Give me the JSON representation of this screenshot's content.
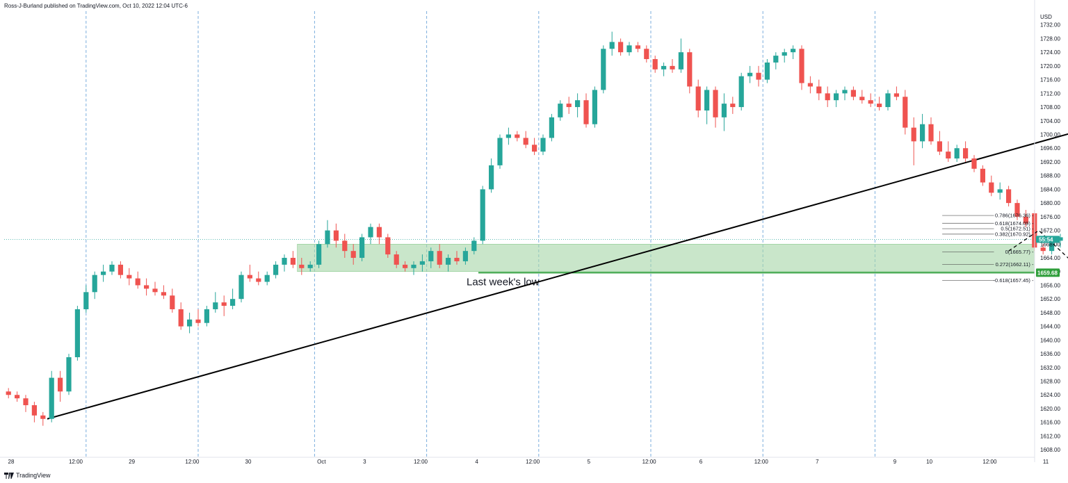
{
  "header": {
    "publisher": "Ross-J-Burland published on TradingView.com, Oct 10, 2022 12:04 UTC-6"
  },
  "brand": {
    "label": "TradingView"
  },
  "chart_data": {
    "type": "candlestick",
    "currency": "USD",
    "ylim": [
      1606,
      1736
    ],
    "xlim": [
      0,
      124
    ],
    "y_ticks": [
      1608,
      1612,
      1616,
      1620,
      1624,
      1628,
      1632,
      1636,
      1640,
      1644,
      1648,
      1652,
      1656,
      1660,
      1664,
      1668,
      1672,
      1676,
      1680,
      1684,
      1688,
      1692,
      1696,
      1700,
      1704,
      1708,
      1712,
      1716,
      1720,
      1724,
      1728,
      1732
    ],
    "x_labels": [
      {
        "label": "28",
        "x": 0
      },
      {
        "label": "12:00",
        "x": 7.5
      },
      {
        "label": "29",
        "x": 14
      },
      {
        "label": "12:00",
        "x": 21
      },
      {
        "label": "30",
        "x": 27.5
      },
      {
        "label": "Oct",
        "x": 36
      },
      {
        "label": "3",
        "x": 41
      },
      {
        "label": "12:00",
        "x": 47.5
      },
      {
        "label": "4",
        "x": 54
      },
      {
        "label": "12:00",
        "x": 60.5
      },
      {
        "label": "5",
        "x": 67
      },
      {
        "label": "12:00",
        "x": 74
      },
      {
        "label": "6",
        "x": 80
      },
      {
        "label": "12:00",
        "x": 87
      },
      {
        "label": "7",
        "x": 93.5
      },
      {
        "label": "9",
        "x": 102.5
      },
      {
        "label": "10",
        "x": 106.5
      },
      {
        "label": "12:00",
        "x": 113.5
      },
      {
        "label": "11",
        "x": 120
      }
    ],
    "session_lines": [
      9.5,
      22.5,
      36,
      49,
      62,
      75,
      88,
      101
    ],
    "candles": [
      [
        1625,
        1626,
        1623,
        1624
      ],
      [
        1624,
        1625,
        1622,
        1623
      ],
      [
        1623,
        1624,
        1619,
        1621
      ],
      [
        1621,
        1622,
        1616,
        1618
      ],
      [
        1618,
        1619,
        1615,
        1617
      ],
      [
        1617,
        1631,
        1616,
        1629
      ],
      [
        1629,
        1631,
        1622,
        1625
      ],
      [
        1625,
        1636,
        1624,
        1635
      ],
      [
        1635,
        1650,
        1634,
        1649
      ],
      [
        1649,
        1656,
        1648,
        1654
      ],
      [
        1654,
        1660,
        1652,
        1659
      ],
      [
        1659,
        1662,
        1657,
        1660
      ],
      [
        1660,
        1663,
        1659,
        1662
      ],
      [
        1662,
        1663,
        1658,
        1659
      ],
      [
        1659,
        1661,
        1656,
        1658
      ],
      [
        1658,
        1660,
        1655,
        1656
      ],
      [
        1656,
        1658,
        1653,
        1655
      ],
      [
        1655,
        1657,
        1653,
        1654
      ],
      [
        1654,
        1656,
        1652,
        1653
      ],
      [
        1653,
        1655,
        1648,
        1649
      ],
      [
        1649,
        1651,
        1643,
        1644
      ],
      [
        1644,
        1648,
        1642,
        1646
      ],
      [
        1646,
        1649,
        1644,
        1645
      ],
      [
        1645,
        1650,
        1644,
        1649
      ],
      [
        1649,
        1654,
        1648,
        1651
      ],
      [
        1651,
        1653,
        1647,
        1650
      ],
      [
        1650,
        1655,
        1649,
        1652
      ],
      [
        1652,
        1660,
        1651,
        1659
      ],
      [
        1659,
        1662,
        1657,
        1658
      ],
      [
        1658,
        1660,
        1656,
        1657
      ],
      [
        1657,
        1660,
        1656,
        1659
      ],
      [
        1659,
        1663,
        1658,
        1662
      ],
      [
        1662,
        1665,
        1660,
        1664
      ],
      [
        1664,
        1666,
        1661,
        1662
      ],
      [
        1662,
        1664,
        1659,
        1661
      ],
      [
        1661,
        1663,
        1660,
        1662
      ],
      [
        1662,
        1669,
        1661,
        1668
      ],
      [
        1668,
        1675,
        1667,
        1672
      ],
      [
        1672,
        1674,
        1667,
        1669
      ],
      [
        1669,
        1671,
        1664,
        1666
      ],
      [
        1666,
        1668,
        1662,
        1664
      ],
      [
        1664,
        1671,
        1663,
        1670
      ],
      [
        1670,
        1674,
        1668,
        1673
      ],
      [
        1673,
        1674,
        1668,
        1670
      ],
      [
        1670,
        1671,
        1664,
        1665
      ],
      [
        1665,
        1666,
        1661,
        1662
      ],
      [
        1662,
        1663,
        1660,
        1661
      ],
      [
        1661,
        1663,
        1659,
        1662
      ],
      [
        1662,
        1665,
        1660,
        1663
      ],
      [
        1663,
        1667,
        1661,
        1666
      ],
      [
        1666,
        1668,
        1661,
        1662
      ],
      [
        1662,
        1665,
        1660,
        1664
      ],
      [
        1664,
        1666,
        1662,
        1663
      ],
      [
        1663,
        1667,
        1662,
        1666
      ],
      [
        1666,
        1670,
        1665,
        1669
      ],
      [
        1669,
        1685,
        1668,
        1684
      ],
      [
        1684,
        1693,
        1683,
        1691
      ],
      [
        1691,
        1700,
        1690,
        1699
      ],
      [
        1699,
        1702,
        1697,
        1700
      ],
      [
        1700,
        1701,
        1698,
        1699
      ],
      [
        1699,
        1701,
        1696,
        1697
      ],
      [
        1697,
        1699,
        1694,
        1695
      ],
      [
        1695,
        1700,
        1694,
        1699
      ],
      [
        1699,
        1706,
        1698,
        1705
      ],
      [
        1705,
        1710,
        1704,
        1709
      ],
      [
        1709,
        1711,
        1706,
        1708
      ],
      [
        1708,
        1712,
        1705,
        1710
      ],
      [
        1710,
        1712,
        1702,
        1703
      ],
      [
        1703,
        1714,
        1702,
        1713
      ],
      [
        1713,
        1726,
        1712,
        1725
      ],
      [
        1725,
        1730,
        1723,
        1727
      ],
      [
        1727,
        1728,
        1723,
        1724
      ],
      [
        1724,
        1727,
        1723,
        1726
      ],
      [
        1726,
        1727,
        1724,
        1725
      ],
      [
        1725,
        1726,
        1721,
        1722
      ],
      [
        1722,
        1723,
        1718,
        1719
      ],
      [
        1719,
        1721,
        1717,
        1720
      ],
      [
        1720,
        1722,
        1718,
        1719
      ],
      [
        1719,
        1728,
        1718,
        1724
      ],
      [
        1724,
        1725,
        1712,
        1714
      ],
      [
        1714,
        1716,
        1705,
        1707
      ],
      [
        1707,
        1714,
        1703,
        1713
      ],
      [
        1713,
        1714,
        1702,
        1705
      ],
      [
        1705,
        1712,
        1701,
        1709
      ],
      [
        1709,
        1711,
        1706,
        1708
      ],
      [
        1708,
        1718,
        1707,
        1717
      ],
      [
        1717,
        1720,
        1715,
        1718
      ],
      [
        1718,
        1720,
        1714,
        1716
      ],
      [
        1716,
        1722,
        1715,
        1721
      ],
      [
        1721,
        1724,
        1719,
        1723
      ],
      [
        1723,
        1725,
        1721,
        1724
      ],
      [
        1724,
        1726,
        1722,
        1725
      ],
      [
        1725,
        1726,
        1713,
        1715
      ],
      [
        1715,
        1717,
        1712,
        1714
      ],
      [
        1714,
        1716,
        1710,
        1712
      ],
      [
        1712,
        1714,
        1708,
        1710
      ],
      [
        1710,
        1713,
        1708,
        1712
      ],
      [
        1712,
        1714,
        1710,
        1713
      ],
      [
        1713,
        1714,
        1710,
        1711
      ],
      [
        1711,
        1713,
        1709,
        1710
      ],
      [
        1710,
        1712,
        1708,
        1709
      ],
      [
        1709,
        1711,
        1707,
        1708
      ],
      [
        1708,
        1713,
        1707,
        1712
      ],
      [
        1712,
        1714,
        1710,
        1711
      ],
      [
        1711,
        1713,
        1700,
        1702
      ],
      [
        1702,
        1705,
        1691,
        1698
      ],
      [
        1698,
        1706,
        1696,
        1703
      ],
      [
        1703,
        1705,
        1697,
        1698
      ],
      [
        1698,
        1701,
        1694,
        1695
      ],
      [
        1695,
        1698,
        1692,
        1693
      ],
      [
        1693,
        1697,
        1692,
        1696
      ],
      [
        1696,
        1698,
        1692,
        1693
      ],
      [
        1693,
        1694,
        1689,
        1690
      ],
      [
        1690,
        1691,
        1685,
        1686
      ],
      [
        1686,
        1688,
        1682,
        1683
      ],
      [
        1683,
        1686,
        1681,
        1684
      ],
      [
        1684,
        1685,
        1679,
        1680
      ],
      [
        1680,
        1681,
        1675,
        1676
      ],
      [
        1676,
        1678,
        1673,
        1674
      ],
      [
        1677,
        1678,
        1666,
        1667
      ],
      [
        1667,
        1668,
        1665,
        1666
      ],
      [
        1666,
        1670,
        1665,
        1669
      ],
      [
        1669,
        1671,
        1667,
        1670
      ]
    ],
    "trendline": {
      "from": {
        "x": 5,
        "y": 1617
      },
      "to": {
        "x": 164.5,
        "y": 1729
      }
    },
    "support_zone": {
      "top": 1668,
      "bottom": 1660,
      "x_start": 34,
      "label": "Last week's low"
    },
    "support_line": {
      "value": 1659.68,
      "x_start": 55,
      "label": "1659.68"
    },
    "current_price": {
      "value": 1669.4,
      "countdown": "55:54"
    },
    "fib_levels": [
      {
        "ratio": "0.786",
        "price": 1676.36,
        "label": "0.786(1676.36)"
      },
      {
        "ratio": "0.618",
        "price": 1674.09,
        "label": "0.618(1674.09)"
      },
      {
        "ratio": "0.5",
        "price": 1672.51,
        "label": "0.5(1672.51)"
      },
      {
        "ratio": "0.382",
        "price": 1670.92,
        "label": "0.382(1670.92)"
      },
      {
        "ratio": "0",
        "price": 1665.77,
        "label": "0(1665.77)"
      },
      {
        "ratio": "0.272",
        "price": 1662.11,
        "label": "0.272(1662.11)"
      },
      {
        "ratio": "-0.618",
        "price": 1657.45,
        "label": "-0.618(1657.45)"
      }
    ],
    "projection": [
      [
        116.5,
        1666
      ],
      [
        120,
        1672
      ],
      [
        125.5,
        1659
      ]
    ],
    "colors": {
      "up": "#26a69a",
      "down": "#ef5350",
      "zone": "#a5d6a7",
      "support": "#2e9e3a",
      "grid": "#5b9bd5",
      "trend": "#000000"
    }
  }
}
